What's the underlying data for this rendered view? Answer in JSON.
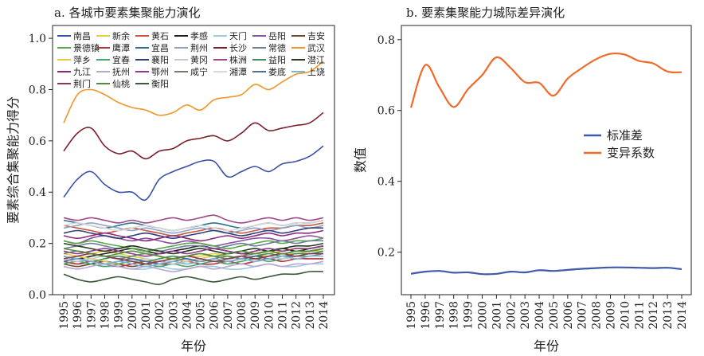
{
  "chart_data": [
    {
      "type": "line",
      "title": "a. 各城市要素集聚能力演化",
      "xlabel": "年份",
      "ylabel": "要素综合集聚能力得分",
      "ylim": [
        0,
        1.05
      ],
      "yticks": [
        "0.0",
        "0.2",
        "0.4",
        "0.6",
        "0.8",
        "1.0"
      ],
      "x": [
        "1995",
        "1996",
        "1997",
        "1998",
        "1999",
        "2000",
        "2001",
        "2002",
        "2003",
        "2004",
        "2005",
        "2006",
        "2007",
        "2008",
        "2009",
        "2010",
        "2011",
        "2012",
        "2013",
        "2014"
      ],
      "legend_position": "top",
      "grid": false,
      "series": [
        {
          "name": "南昌",
          "color": "#3a52a3",
          "values": [
            0.38,
            0.45,
            0.48,
            0.43,
            0.4,
            0.4,
            0.37,
            0.45,
            0.48,
            0.5,
            0.52,
            0.52,
            0.46,
            0.48,
            0.5,
            0.48,
            0.51,
            0.52,
            0.54,
            0.58
          ]
        },
        {
          "name": "新余",
          "color": "#e3cf3a",
          "values": [
            0.14,
            0.15,
            0.16,
            0.17,
            0.16,
            0.15,
            0.14,
            0.13,
            0.14,
            0.15,
            0.15,
            0.16,
            0.15,
            0.14,
            0.15,
            0.16,
            0.17,
            0.18,
            0.18,
            0.19
          ]
        },
        {
          "name": "黄石",
          "color": "#c9563c",
          "values": [
            0.27,
            0.26,
            0.25,
            0.24,
            0.25,
            0.26,
            0.25,
            0.24,
            0.23,
            0.24,
            0.25,
            0.26,
            0.25,
            0.24,
            0.25,
            0.26,
            0.26,
            0.27,
            0.27,
            0.28
          ]
        },
        {
          "name": "孝感",
          "color": "#1f1f1f",
          "values": [
            0.15,
            0.14,
            0.15,
            0.16,
            0.17,
            0.18,
            0.17,
            0.16,
            0.17,
            0.18,
            0.19,
            0.18,
            0.17,
            0.16,
            0.16,
            0.17,
            0.18,
            0.17,
            0.18,
            0.19
          ]
        },
        {
          "name": "天门",
          "color": "#9ecae1",
          "values": [
            0.13,
            0.12,
            0.12,
            0.11,
            0.11,
            0.1,
            0.1,
            0.11,
            0.1,
            0.1,
            0.11,
            0.11,
            0.1,
            0.1,
            0.11,
            0.12,
            0.11,
            0.11,
            0.12,
            0.12
          ]
        },
        {
          "name": "岳阳",
          "color": "#8a4f9e",
          "values": [
            0.21,
            0.2,
            0.22,
            0.23,
            0.22,
            0.21,
            0.22,
            0.21,
            0.2,
            0.21,
            0.2,
            0.19,
            0.2,
            0.21,
            0.22,
            0.22,
            0.21,
            0.22,
            0.23,
            0.22
          ]
        },
        {
          "name": "吉安",
          "color": "#6b4a2a",
          "values": [
            0.12,
            0.11,
            0.12,
            0.13,
            0.12,
            0.11,
            0.12,
            0.13,
            0.12,
            0.13,
            0.14,
            0.13,
            0.13,
            0.14,
            0.15,
            0.15,
            0.16,
            0.16,
            0.17,
            0.18
          ]
        },
        {
          "name": "景德镇",
          "color": "#5aa84a",
          "values": [
            0.21,
            0.2,
            0.21,
            0.2,
            0.19,
            0.18,
            0.17,
            0.18,
            0.19,
            0.2,
            0.2,
            0.19,
            0.18,
            0.19,
            0.2,
            0.21,
            0.2,
            0.21,
            0.21,
            0.22
          ]
        },
        {
          "name": "鹰潭",
          "color": "#b8323a",
          "values": [
            0.13,
            0.12,
            0.13,
            0.12,
            0.11,
            0.12,
            0.13,
            0.12,
            0.12,
            0.13,
            0.12,
            0.12,
            0.13,
            0.12,
            0.13,
            0.14,
            0.13,
            0.14,
            0.14,
            0.14
          ]
        },
        {
          "name": "宜昌",
          "color": "#2e6f8e",
          "values": [
            0.29,
            0.28,
            0.27,
            0.26,
            0.27,
            0.28,
            0.27,
            0.26,
            0.25,
            0.26,
            0.27,
            0.28,
            0.27,
            0.26,
            0.27,
            0.28,
            0.27,
            0.28,
            0.28,
            0.29
          ]
        },
        {
          "name": "荆州",
          "color": "#8fa3c9",
          "values": [
            0.26,
            0.27,
            0.28,
            0.27,
            0.26,
            0.25,
            0.26,
            0.25,
            0.24,
            0.25,
            0.26,
            0.25,
            0.24,
            0.25,
            0.26,
            0.25,
            0.26,
            0.27,
            0.26,
            0.27
          ]
        },
        {
          "name": "长沙",
          "color": "#7a1f2a",
          "values": [
            0.56,
            0.63,
            0.65,
            0.58,
            0.55,
            0.56,
            0.53,
            0.56,
            0.57,
            0.6,
            0.61,
            0.62,
            0.6,
            0.63,
            0.67,
            0.64,
            0.65,
            0.66,
            0.67,
            0.71
          ]
        },
        {
          "name": "常德",
          "color": "#6d7f9a",
          "values": [
            0.18,
            0.19,
            0.2,
            0.19,
            0.18,
            0.19,
            0.18,
            0.17,
            0.18,
            0.19,
            0.19,
            0.18,
            0.19,
            0.2,
            0.19,
            0.2,
            0.21,
            0.2,
            0.21,
            0.21
          ]
        },
        {
          "name": "武汉",
          "color": "#f0962a",
          "values": [
            0.67,
            0.78,
            0.8,
            0.78,
            0.75,
            0.73,
            0.72,
            0.7,
            0.71,
            0.74,
            0.72,
            0.76,
            0.77,
            0.78,
            0.82,
            0.8,
            0.83,
            0.86,
            0.87,
            0.91
          ]
        },
        {
          "name": "萍乡",
          "color": "#e8c84a",
          "values": [
            0.16,
            0.15,
            0.14,
            0.13,
            0.12,
            0.13,
            0.12,
            0.13,
            0.14,
            0.13,
            0.14,
            0.15,
            0.14,
            0.15,
            0.16,
            0.15,
            0.16,
            0.16,
            0.17,
            0.17
          ]
        },
        {
          "name": "宜春",
          "color": "#4aa36b",
          "values": [
            0.12,
            0.13,
            0.12,
            0.11,
            0.12,
            0.13,
            0.12,
            0.11,
            0.12,
            0.11,
            0.12,
            0.13,
            0.12,
            0.13,
            0.14,
            0.13,
            0.14,
            0.15,
            0.15,
            0.16
          ]
        },
        {
          "name": "襄阳",
          "color": "#2f3f7a",
          "values": [
            0.24,
            0.25,
            0.24,
            0.23,
            0.22,
            0.23,
            0.24,
            0.23,
            0.22,
            0.23,
            0.24,
            0.25,
            0.24,
            0.23,
            0.24,
            0.25,
            0.24,
            0.25,
            0.26,
            0.26
          ]
        },
        {
          "name": "黄冈",
          "color": "#c9c9c9",
          "values": [
            0.14,
            0.13,
            0.14,
            0.15,
            0.14,
            0.13,
            0.14,
            0.13,
            0.12,
            0.13,
            0.14,
            0.13,
            0.14,
            0.15,
            0.14,
            0.15,
            0.14,
            0.15,
            0.16,
            0.16
          ]
        },
        {
          "name": "株洲",
          "color": "#9e4a8a",
          "values": [
            0.3,
            0.29,
            0.3,
            0.29,
            0.28,
            0.29,
            0.28,
            0.29,
            0.3,
            0.29,
            0.3,
            0.31,
            0.29,
            0.28,
            0.29,
            0.3,
            0.29,
            0.3,
            0.29,
            0.3
          ]
        },
        {
          "name": "益阳",
          "color": "#3f8f5a",
          "values": [
            0.15,
            0.14,
            0.13,
            0.14,
            0.15,
            0.14,
            0.13,
            0.14,
            0.15,
            0.14,
            0.13,
            0.14,
            0.15,
            0.14,
            0.15,
            0.16,
            0.15,
            0.16,
            0.16,
            0.17
          ]
        },
        {
          "name": "潜江",
          "color": "#2b3a1f",
          "values": [
            0.2,
            0.19,
            0.18,
            0.17,
            0.18,
            0.19,
            0.18,
            0.17,
            0.16,
            0.17,
            0.18,
            0.17,
            0.16,
            0.17,
            0.18,
            0.17,
            0.18,
            0.19,
            0.19,
            0.2
          ]
        },
        {
          "name": "九江",
          "color": "#8a2a7a",
          "values": [
            0.23,
            0.22,
            0.23,
            0.24,
            0.23,
            0.22,
            0.21,
            0.22,
            0.23,
            0.22,
            0.21,
            0.22,
            0.23,
            0.22,
            0.23,
            0.24,
            0.23,
            0.24,
            0.24,
            0.25
          ]
        },
        {
          "name": "抚州",
          "color": "#b9a6d1",
          "values": [
            0.11,
            0.1,
            0.11,
            0.12,
            0.11,
            0.1,
            0.11,
            0.1,
            0.09,
            0.1,
            0.11,
            0.1,
            0.11,
            0.12,
            0.11,
            0.12,
            0.11,
            0.12,
            0.12,
            0.13
          ]
        },
        {
          "name": "鄂州",
          "color": "#8f3a8f",
          "values": [
            0.17,
            0.16,
            0.17,
            0.18,
            0.17,
            0.16,
            0.15,
            0.16,
            0.17,
            0.16,
            0.17,
            0.18,
            0.17,
            0.16,
            0.17,
            0.18,
            0.17,
            0.18,
            0.18,
            0.19
          ]
        },
        {
          "name": "咸宁",
          "color": "#7a7a6a",
          "values": [
            0.16,
            0.17,
            0.16,
            0.15,
            0.14,
            0.15,
            0.16,
            0.15,
            0.14,
            0.15,
            0.16,
            0.15,
            0.14,
            0.15,
            0.16,
            0.17,
            0.16,
            0.17,
            0.17,
            0.18
          ]
        },
        {
          "name": "湘潭",
          "color": "#d8d8d8",
          "values": [
            0.27,
            0.28,
            0.27,
            0.26,
            0.25,
            0.26,
            0.27,
            0.26,
            0.25,
            0.26,
            0.27,
            0.26,
            0.25,
            0.26,
            0.27,
            0.28,
            0.27,
            0.28,
            0.28,
            0.29
          ]
        },
        {
          "name": "娄底",
          "color": "#4f6f9f",
          "values": [
            0.13,
            0.14,
            0.13,
            0.12,
            0.13,
            0.14,
            0.13,
            0.12,
            0.13,
            0.14,
            0.13,
            0.14,
            0.13,
            0.14,
            0.15,
            0.14,
            0.15,
            0.15,
            0.16,
            0.16
          ]
        },
        {
          "name": "上饶",
          "color": "#7fb3d9",
          "values": [
            0.15,
            0.14,
            0.13,
            0.12,
            0.13,
            0.12,
            0.11,
            0.12,
            0.13,
            0.12,
            0.13,
            0.14,
            0.13,
            0.14,
            0.13,
            0.14,
            0.15,
            0.14,
            0.15,
            0.15
          ]
        },
        {
          "name": "荆门",
          "color": "#8a3a4f",
          "values": [
            0.14,
            0.15,
            0.16,
            0.15,
            0.14,
            0.13,
            0.12,
            0.13,
            0.14,
            0.15,
            0.14,
            0.13,
            0.14,
            0.15,
            0.14,
            0.15,
            0.16,
            0.15,
            0.16,
            0.16
          ]
        },
        {
          "name": "仙桃",
          "color": "#4f8f3a",
          "values": [
            0.18,
            0.17,
            0.16,
            0.15,
            0.16,
            0.17,
            0.16,
            0.15,
            0.14,
            0.15,
            0.16,
            0.15,
            0.16,
            0.17,
            0.16,
            0.17,
            0.16,
            0.17,
            0.17,
            0.18
          ]
        },
        {
          "name": "衡阳",
          "color": "#3a5a3a",
          "values": [
            0.08,
            0.06,
            0.05,
            0.06,
            0.07,
            0.06,
            0.05,
            0.04,
            0.06,
            0.07,
            0.06,
            0.05,
            0.06,
            0.07,
            0.06,
            0.07,
            0.08,
            0.08,
            0.09,
            0.09
          ]
        }
      ]
    },
    {
      "type": "line",
      "title": "b. 要素集聚能力城际差异演化",
      "xlabel": "年份",
      "ylabel": "数值",
      "ylim": [
        0.08,
        0.84
      ],
      "yticks": [
        "0.2",
        "0.4",
        "0.6",
        "0.8"
      ],
      "x": [
        "1995",
        "1996",
        "1997",
        "1998",
        "1999",
        "2000",
        "2001",
        "2002",
        "2003",
        "2004",
        "2005",
        "2006",
        "2007",
        "2008",
        "2009",
        "2010",
        "2011",
        "2012",
        "2013",
        "2014"
      ],
      "legend_position": "right",
      "grid": false,
      "series": [
        {
          "name": "标准差",
          "color": "#3f5aa8",
          "values": [
            0.139,
            0.145,
            0.147,
            0.142,
            0.143,
            0.138,
            0.139,
            0.145,
            0.143,
            0.149,
            0.147,
            0.15,
            0.153,
            0.155,
            0.157,
            0.157,
            0.156,
            0.155,
            0.156,
            0.152
          ]
        },
        {
          "name": "变异系数",
          "color": "#f06a2a",
          "values": [
            0.608,
            0.728,
            0.665,
            0.61,
            0.66,
            0.7,
            0.75,
            0.72,
            0.68,
            0.678,
            0.642,
            0.69,
            0.72,
            0.745,
            0.76,
            0.758,
            0.74,
            0.733,
            0.71,
            0.708
          ]
        }
      ]
    }
  ]
}
